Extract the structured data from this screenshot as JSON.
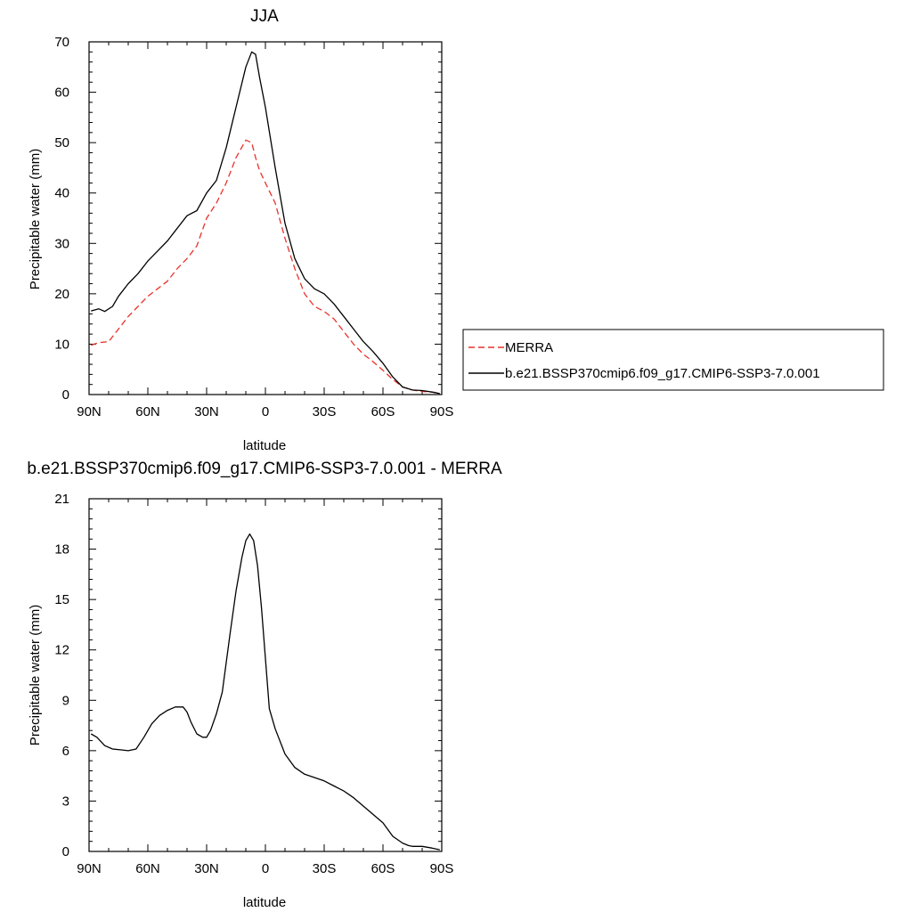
{
  "colors": {
    "merra": "#e8322b",
    "model": "#000000",
    "axis": "#000000",
    "legend_border": "#000000"
  },
  "chart_data": [
    {
      "type": "line",
      "title": "JJA",
      "xlabel": "latitude",
      "ylabel": "Precipitable water (mm)",
      "xlim": [
        90,
        -90
      ],
      "ylim": [
        0,
        70
      ],
      "xticks": [
        90,
        60,
        30,
        0,
        -30,
        -60,
        -90
      ],
      "xtick_labels": [
        "90N",
        "60N",
        "30N",
        "0",
        "30S",
        "60S",
        "90S"
      ],
      "yticks": [
        0,
        10,
        20,
        30,
        40,
        50,
        60,
        70
      ],
      "ytick_labels": [
        "0",
        "10",
        "20",
        "30",
        "40",
        "50",
        "60",
        "70"
      ],
      "legend_position": "right",
      "legend": [
        "MERRA",
        "b.e21.BSSP370cmip6.f09_g17.CMIP6-SSP3-7.0.001"
      ],
      "series": [
        {
          "name": "MERRA",
          "style": "dashed",
          "color": "#e8322b",
          "x": [
            89,
            85,
            80,
            75,
            70,
            65,
            60,
            55,
            50,
            45,
            40,
            35,
            30,
            25,
            20,
            15,
            10,
            7,
            5,
            3,
            0,
            -5,
            -10,
            -15,
            -20,
            -25,
            -30,
            -35,
            -40,
            -45,
            -50,
            -55,
            -60,
            -65,
            -70,
            -75,
            -80,
            -85,
            -89
          ],
          "y": [
            9.8,
            10.3,
            10.5,
            13,
            15.5,
            17.5,
            19.5,
            21,
            22.5,
            25,
            27,
            29.5,
            35,
            38,
            42,
            47,
            50.5,
            50,
            47,
            44.5,
            42,
            38,
            31,
            25,
            20,
            17.5,
            16.5,
            15,
            12.5,
            10,
            8,
            6.5,
            4.8,
            3,
            1.5,
            0.9,
            0.6,
            0.5,
            0.3
          ]
        },
        {
          "name": "b.e21.BSSP370cmip6.f09_g17.CMIP6-SSP3-7.0.001",
          "style": "solid",
          "color": "#000000",
          "x": [
            89,
            85,
            82,
            78,
            75,
            70,
            65,
            60,
            55,
            50,
            45,
            40,
            35,
            30,
            25,
            20,
            15,
            10,
            7,
            5,
            3,
            0,
            -5,
            -10,
            -15,
            -20,
            -25,
            -30,
            -35,
            -40,
            -45,
            -50,
            -55,
            -60,
            -65,
            -70,
            -75,
            -80,
            -85,
            -89
          ],
          "y": [
            16.6,
            17,
            16.5,
            17.5,
            19.5,
            22,
            24,
            26.5,
            28.5,
            30.5,
            33,
            35.5,
            36.5,
            40,
            42.5,
            49,
            57,
            65,
            68,
            67.5,
            63,
            57,
            45,
            34,
            27,
            23,
            21,
            20,
            18,
            15.5,
            13,
            10.5,
            8.5,
            6.2,
            3.5,
            1.5,
            0.9,
            0.8,
            0.5,
            0.2
          ]
        }
      ]
    },
    {
      "type": "line",
      "title": "b.e21.BSSP370cmip6.f09_g17.CMIP6-SSP3-7.0.001 - MERRA",
      "xlabel": "latitude",
      "ylabel": "Precipitable water (mm)",
      "xlim": [
        90,
        -90
      ],
      "ylim": [
        0,
        21
      ],
      "xticks": [
        90,
        60,
        30,
        0,
        -30,
        -60,
        -90
      ],
      "xtick_labels": [
        "90N",
        "60N",
        "30N",
        "0",
        "30S",
        "60S",
        "90S"
      ],
      "yticks": [
        0,
        3,
        6,
        9,
        12,
        15,
        18,
        21
      ],
      "ytick_labels": [
        "0",
        "3",
        "6",
        "9",
        "12",
        "15",
        "18",
        "21"
      ],
      "series": [
        {
          "style": "solid",
          "color": "#000000",
          "x": [
            89,
            86,
            82,
            78,
            74,
            70,
            66,
            62,
            58,
            54,
            50,
            46,
            42,
            40,
            38,
            35,
            32,
            30,
            28,
            25,
            22,
            18,
            15,
            12,
            10,
            8,
            6,
            4,
            2,
            0,
            -2,
            -5,
            -10,
            -15,
            -20,
            -25,
            -30,
            -35,
            -40,
            -45,
            -50,
            -55,
            -60,
            -65,
            -70,
            -73,
            -75,
            -80,
            -85,
            -89
          ],
          "y": [
            7,
            6.8,
            6.3,
            6.1,
            6.05,
            6.0,
            6.1,
            6.8,
            7.6,
            8.1,
            8.4,
            8.6,
            8.6,
            8.3,
            7.7,
            7.0,
            6.8,
            6.8,
            7.2,
            8.2,
            9.5,
            13,
            15.5,
            17.5,
            18.5,
            18.9,
            18.5,
            17.0,
            14.5,
            11.5,
            8.5,
            7.3,
            5.8,
            5.0,
            4.6,
            4.4,
            4.2,
            3.9,
            3.6,
            3.2,
            2.7,
            2.2,
            1.7,
            0.9,
            0.5,
            0.35,
            0.3,
            0.3,
            0.2,
            0.1
          ]
        }
      ]
    }
  ]
}
